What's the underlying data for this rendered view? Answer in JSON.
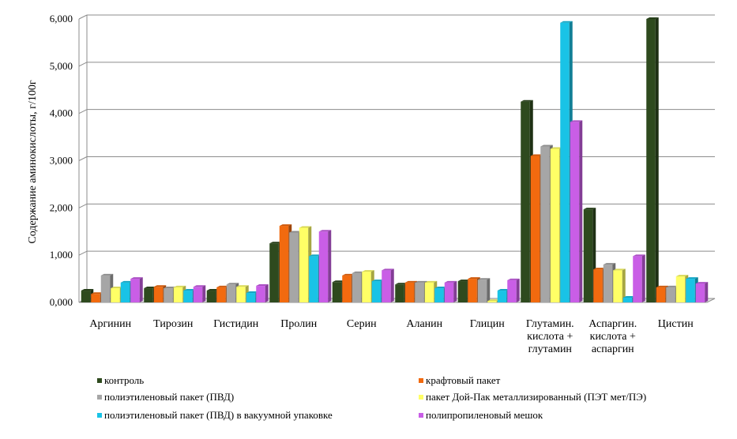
{
  "chart_data": {
    "type": "bar",
    "title": "",
    "ylabel": "Содержание аминокислоты, г/100г",
    "ylim": [
      0,
      6
    ],
    "yticks": [
      "0,000",
      "1,000",
      "2,000",
      "3,000",
      "4,000",
      "5,000",
      "6,000"
    ],
    "grid": true,
    "legend_position": "bottom",
    "categories": [
      [
        "Аргинин"
      ],
      [
        "Тирозин"
      ],
      [
        "Гистидин"
      ],
      [
        "Пролин"
      ],
      [
        "Серин"
      ],
      [
        "Аланин"
      ],
      [
        "Глицин"
      ],
      [
        "Глутамин.",
        "кислота +",
        "глутамин"
      ],
      [
        "Аспаргин.",
        "кислота +",
        "аспаргин"
      ],
      [
        "Цистин"
      ]
    ],
    "series": [
      {
        "name": "контроль",
        "color": "#2e4a1e",
        "values": [
          0.25,
          0.3,
          0.25,
          1.25,
          0.43,
          0.38,
          0.45,
          4.25,
          1.97,
          6.0
        ]
      },
      {
        "name": "крафтовый пакет",
        "color": "#f26a0f",
        "values": [
          0.18,
          0.33,
          0.32,
          1.62,
          0.57,
          0.42,
          0.5,
          3.1,
          0.7,
          0.32
        ]
      },
      {
        "name": "полиэтиленовый пакет (ПВД)",
        "color": "#a6a6a6",
        "values": [
          0.57,
          0.3,
          0.38,
          1.48,
          0.62,
          0.42,
          0.48,
          3.3,
          0.8,
          0.32
        ]
      },
      {
        "name": "пакет Дой-Пак металлизированный (ПЭТ мет/ПЭ)",
        "color": "#ffff66",
        "values": [
          0.3,
          0.32,
          0.33,
          1.58,
          0.65,
          0.42,
          0.03,
          3.25,
          0.68,
          0.55
        ]
      },
      {
        "name": "полиэтиленовый пакет (ПВД) в вакуумной упаковке",
        "color": "#19c3e6",
        "values": [
          0.42,
          0.25,
          0.2,
          0.98,
          0.45,
          0.3,
          0.25,
          5.92,
          0.1,
          0.5
        ]
      },
      {
        "name": "полипропиленовый мешок",
        "color": "#c95ee6",
        "values": [
          0.5,
          0.33,
          0.35,
          1.5,
          0.68,
          0.42,
          0.47,
          3.82,
          0.98,
          0.4
        ]
      }
    ]
  }
}
